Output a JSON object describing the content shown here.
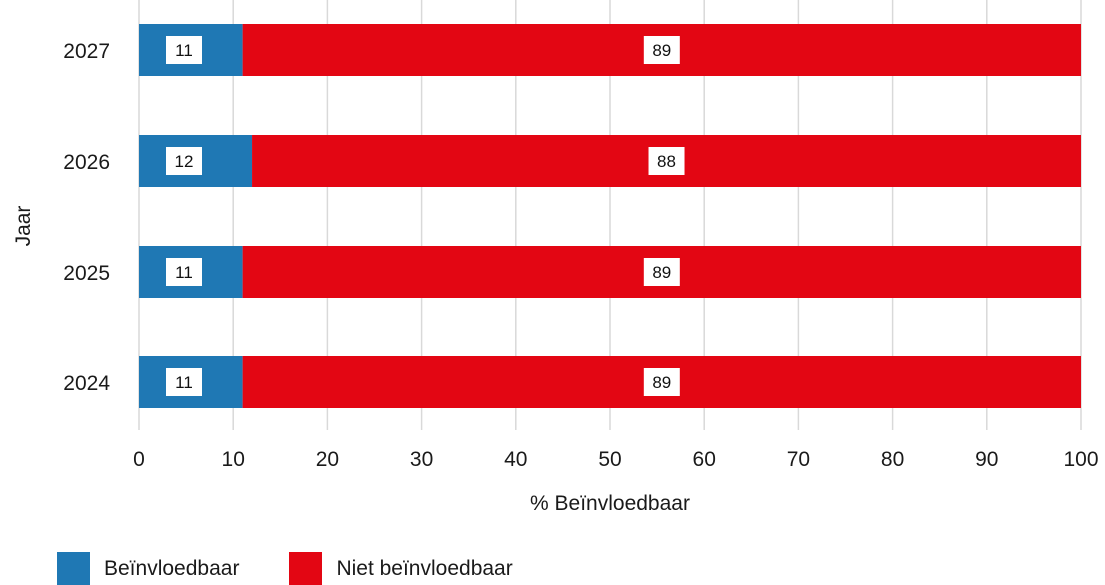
{
  "chart_data": {
    "type": "bar",
    "orientation": "horizontal",
    "stacked": true,
    "ylabel": "Jaar",
    "xlabel": "% Beïnvloedbaar",
    "categories": [
      "2027",
      "2026",
      "2025",
      "2024"
    ],
    "xlim": [
      0,
      100
    ],
    "xticks": [
      "0",
      "10",
      "20",
      "30",
      "40",
      "50",
      "60",
      "70",
      "80",
      "90",
      "100"
    ],
    "grid": true,
    "legend_position": "bottom-left",
    "series": [
      {
        "name": "Beïnvloedbaar",
        "color": "#1f78b4",
        "values": [
          11,
          12,
          11,
          11
        ]
      },
      {
        "name": "Niet beïnvloedbaar",
        "color": "#e30613",
        "values": [
          89,
          88,
          89,
          89
        ]
      }
    ]
  },
  "colors": {
    "grid": "#d9d9d9",
    "label_box": "#ffffff"
  }
}
